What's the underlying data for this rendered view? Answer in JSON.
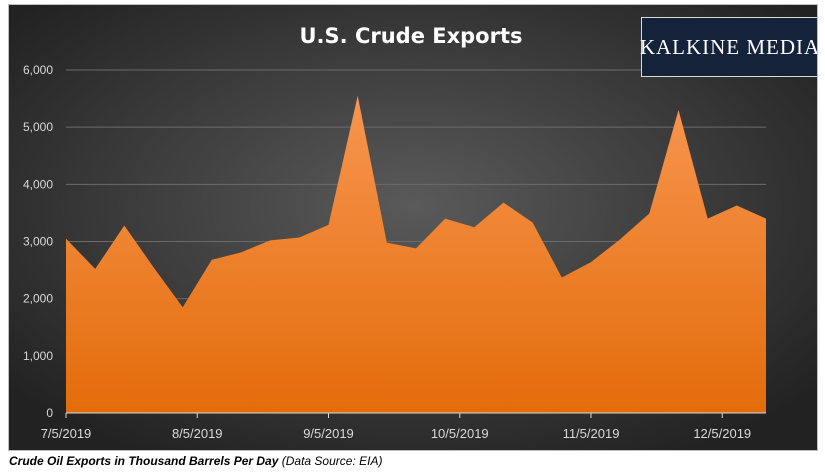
{
  "logo_text": "KALKINE MEDIA",
  "caption": {
    "main": "Crude Oil Exports in Thousand Barrels Per Day",
    "source": " (Data Source: EIA)"
  },
  "colors": {
    "background_center": "#5a5a5a",
    "background_edge": "#222222",
    "area_top": "#f79650",
    "area_bottom": "#e46c0a",
    "grid": "#6b6b6b",
    "text": "#d9d9d9",
    "title": "#ffffff"
  },
  "chart_data": {
    "type": "area",
    "title": "U.S. Crude Exports",
    "xlabel": "",
    "ylabel": "",
    "ylim": [
      0,
      6000
    ],
    "yticks": [
      0,
      1000,
      2000,
      3000,
      4000,
      5000,
      6000
    ],
    "ytick_labels": [
      "0",
      "1,000",
      "2,000",
      "3,000",
      "4,000",
      "5,000",
      "6,000"
    ],
    "xtick_labels": [
      "7/5/2019",
      "8/5/2019",
      "9/5/2019",
      "10/5/2019",
      "11/5/2019",
      "12/5/2019"
    ],
    "xtick_index": [
      0,
      4.5,
      9,
      13.5,
      18,
      22.5
    ],
    "grid": true,
    "legend": "none",
    "series": [
      {
        "values": [
          3050,
          2520,
          3280,
          2550,
          1850,
          2680,
          2810,
          3020,
          3070,
          3290,
          5550,
          2980,
          2880,
          3400,
          3250,
          3680,
          3330,
          2370,
          2640,
          3040,
          3490,
          5300,
          3400,
          3630,
          3400
        ]
      }
    ]
  }
}
